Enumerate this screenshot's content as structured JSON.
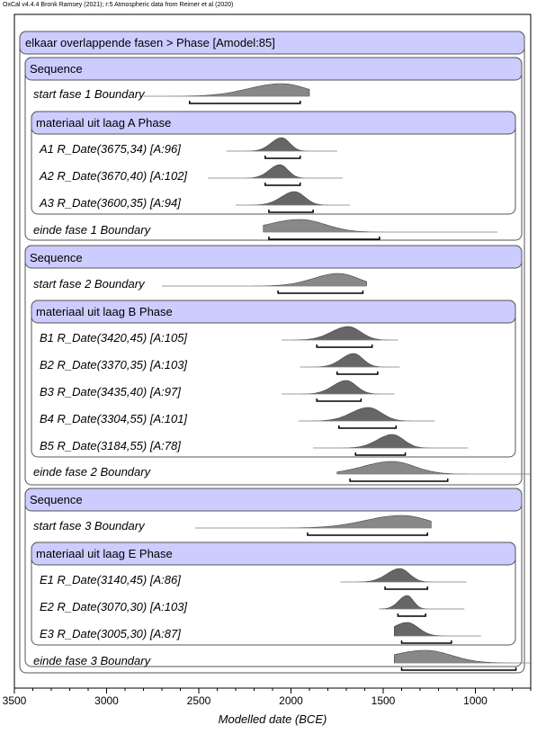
{
  "header_text": "OxCal v4.4.4 Bronk Ramsey (2021); r:5 Atmospheric data from Reimer et al (2020)",
  "chart_data": {
    "type": "ridgeline",
    "xlabel": "Modelled date (BCE)",
    "x_axis": {
      "range": [
        3500,
        700
      ],
      "reversed": true,
      "ticks": [
        3500,
        3000,
        2500,
        2000,
        1500,
        1000
      ]
    },
    "grid": false,
    "model": "elkaar overlappende fasen > Phase [Amodel:85]",
    "sequences": [
      {
        "title": "Sequence",
        "start": {
          "label": "start fase 1 Boundary",
          "peak": 2050,
          "range": [
            2550,
            1950
          ],
          "tail": [
            2800,
            1900
          ]
        },
        "phase": {
          "title": "materiaal uit laag A Phase",
          "dates": [
            {
              "label": "A1 R_Date(3675,34) [A:96]",
              "peak": 2050,
              "range": [
                2140,
                1950
              ],
              "tail": [
                2350,
                1750
              ]
            },
            {
              "label": "A2 R_Date(3670,40) [A:102]",
              "peak": 2060,
              "range": [
                2140,
                1950
              ],
              "tail": [
                2450,
                1720
              ]
            },
            {
              "label": "A3 R_Date(3600,35) [A:94]",
              "peak": 1980,
              "range": [
                2120,
                1880
              ],
              "tail": [
                2300,
                1680
              ]
            }
          ]
        },
        "end": {
          "label": "einde fase 1 Boundary",
          "peak": 1950,
          "range": [
            2120,
            1520
          ],
          "tail": [
            2150,
            880
          ]
        }
      },
      {
        "title": "Sequence",
        "start": {
          "label": "start fase 2 Boundary",
          "peak": 1740,
          "range": [
            2070,
            1610
          ],
          "tail": [
            2700,
            1590
          ]
        },
        "phase": {
          "title": "materiaal uit laag B Phase",
          "dates": [
            {
              "label": "B1 R_Date(3420,45) [A:105]",
              "peak": 1690,
              "range": [
                1860,
                1560
              ],
              "tail": [
                2050,
                1420
              ]
            },
            {
              "label": "B2 R_Date(3370,35) [A:103]",
              "peak": 1660,
              "range": [
                1750,
                1530
              ],
              "tail": [
                1950,
                1410
              ]
            },
            {
              "label": "B3 R_Date(3435,40) [A:97]",
              "peak": 1700,
              "range": [
                1860,
                1620
              ],
              "tail": [
                2050,
                1440
              ]
            },
            {
              "label": "B4 R_Date(3304,55) [A:101]",
              "peak": 1580,
              "range": [
                1740,
                1430
              ],
              "tail": [
                1960,
                1220
              ]
            },
            {
              "label": "B5 R_Date(3184,55) [A:78]",
              "peak": 1450,
              "range": [
                1650,
                1380
              ],
              "tail": [
                1880,
                1040
              ]
            }
          ]
        },
        "end": {
          "label": "einde fase 2 Boundary",
          "peak": 1450,
          "range": [
            1680,
            1150
          ],
          "tail": [
            1750,
            700
          ]
        }
      },
      {
        "title": "Sequence",
        "start": {
          "label": "start fase 3 Boundary",
          "peak": 1400,
          "range": [
            1910,
            1260
          ],
          "tail": [
            2520,
            1240
          ]
        },
        "phase": {
          "title": "materiaal uit laag E Phase",
          "dates": [
            {
              "label": "E1 R_Date(3140,45) [A:86]",
              "peak": 1410,
              "range": [
                1490,
                1260
              ],
              "tail": [
                1730,
                1050
              ]
            },
            {
              "label": "E2 R_Date(3070,30) [A:103]",
              "peak": 1370,
              "range": [
                1420,
                1270
              ],
              "tail": [
                1520,
                1060
              ]
            },
            {
              "label": "E3 R_Date(3005,30) [A:87]",
              "peak": 1370,
              "range": [
                1400,
                1130
              ],
              "tail": [
                1440,
                970
              ]
            }
          ]
        },
        "end": {
          "label": "einde fase 3 Boundary",
          "peak": 1270,
          "range": [
            1400,
            780
          ],
          "tail": [
            1440,
            700
          ]
        }
      }
    ]
  }
}
